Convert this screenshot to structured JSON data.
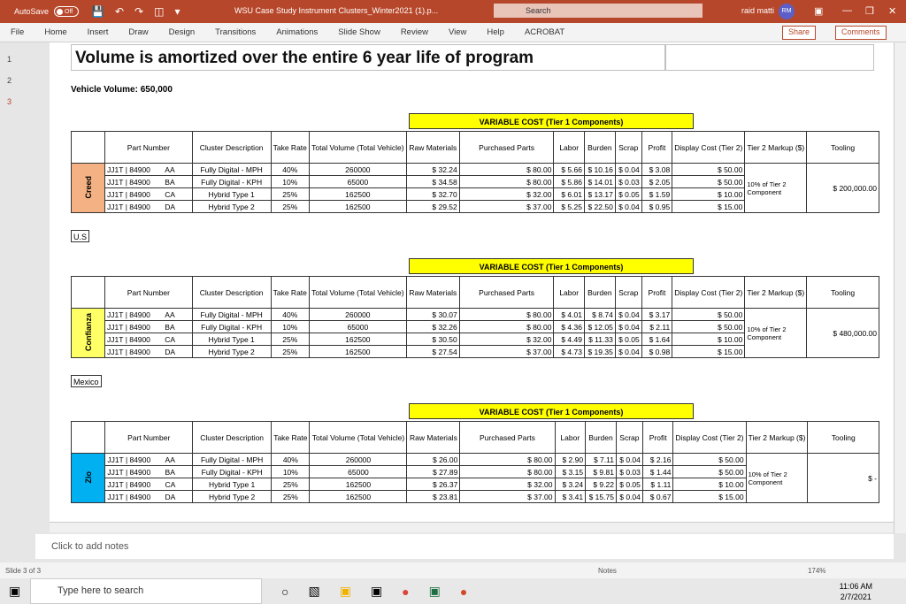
{
  "titlebar": {
    "autosave": "AutoSave",
    "autosave_state": "Off",
    "doc_title": "WSU Case Study Instrument Clusters_Winter2021 (1).p...",
    "search": "Search",
    "user": "raid matti",
    "initials": "RM"
  },
  "ribbon": {
    "tabs": [
      "File",
      "Home",
      "Insert",
      "Draw",
      "Design",
      "Transitions",
      "Animations",
      "Slide Show",
      "Review",
      "View",
      "Help",
      "ACROBAT"
    ],
    "share": "Share",
    "comments": "Comments"
  },
  "slide": {
    "title": "Volume is amortized over the entire 6 year life of program",
    "vehicle_volume": "Vehicle Volume:  650,000"
  },
  "table_headers": [
    "Part Number",
    "Cluster Description",
    "Take Rate",
    "Total Volume (Total Vehicle)",
    "Raw Materials",
    "Purchased Parts",
    "Labor",
    "Burden",
    "Scrap",
    "Profit",
    "Display Cost (Tier 2)",
    "Tier 2 Markup ($)",
    "Tooling"
  ],
  "vc_header": "VARIABLE COST (Tier 1 Components)",
  "markup_note": "10% of Tier 2 Component",
  "blocks": [
    {
      "supplier": "Creed",
      "color": "#f4b183",
      "region": "U.S",
      "tooling": "200,000.00",
      "rows": [
        {
          "part": [
            "JJ1T",
            "84900",
            "AA"
          ],
          "desc": "Fully Digital - MPH",
          "take": "40%",
          "vol": "260000",
          "raw": "32.24",
          "purch": "80.00",
          "labor": "5.66",
          "burden": "10.16",
          "scrap": "0.04",
          "profit": "3.08",
          "display": "50.00"
        },
        {
          "part": [
            "JJ1T",
            "84900",
            "BA"
          ],
          "desc": "Fully Digital - KPH",
          "take": "10%",
          "vol": "65000",
          "raw": "34.58",
          "purch": "80.00",
          "labor": "5.86",
          "burden": "14.01",
          "scrap": "0.03",
          "profit": "2.05",
          "display": "50.00"
        },
        {
          "part": [
            "JJ1T",
            "84900",
            "CA"
          ],
          "desc": "Hybrid Type 1",
          "take": "25%",
          "vol": "162500",
          "raw": "32.70",
          "purch": "32.00",
          "labor": "6.01",
          "burden": "13.17",
          "scrap": "0.05",
          "profit": "1.59",
          "display": "10.00"
        },
        {
          "part": [
            "JJ1T",
            "84900",
            "DA"
          ],
          "desc": "Hybrid Type 2",
          "take": "25%",
          "vol": "162500",
          "raw": "29.52",
          "purch": "37.00",
          "labor": "5.25",
          "burden": "22.50",
          "scrap": "0.04",
          "profit": "0.95",
          "display": "15.00"
        }
      ]
    },
    {
      "supplier": "Confianza",
      "color": "#ffff66",
      "region": "Mexico",
      "tooling": "480,000.00",
      "rows": [
        {
          "part": [
            "JJ1T",
            "84900",
            "AA"
          ],
          "desc": "Fully Digital - MPH",
          "take": "40%",
          "vol": "260000",
          "raw": "30.07",
          "purch": "80.00",
          "labor": "4.01",
          "burden": "8.74",
          "scrap": "0.04",
          "profit": "3.17",
          "display": "50.00"
        },
        {
          "part": [
            "JJ1T",
            "84900",
            "BA"
          ],
          "desc": "Fully Digital - KPH",
          "take": "10%",
          "vol": "65000",
          "raw": "32.26",
          "purch": "80.00",
          "labor": "4.36",
          "burden": "12.05",
          "scrap": "0.04",
          "profit": "2.11",
          "display": "50.00"
        },
        {
          "part": [
            "JJ1T",
            "84900",
            "CA"
          ],
          "desc": "Hybrid Type 1",
          "take": "25%",
          "vol": "162500",
          "raw": "30.50",
          "purch": "32.00",
          "labor": "4.49",
          "burden": "11.33",
          "scrap": "0.05",
          "profit": "1.64",
          "display": "10.00"
        },
        {
          "part": [
            "JJ1T",
            "84900",
            "DA"
          ],
          "desc": "Hybrid Type 2",
          "take": "25%",
          "vol": "162500",
          "raw": "27.54",
          "purch": "37.00",
          "labor": "4.73",
          "burden": "19.35",
          "scrap": "0.04",
          "profit": "0.98",
          "display": "15.00"
        }
      ]
    },
    {
      "supplier": "Zio",
      "color": "#00b0f0",
      "region": "",
      "tooling": "-",
      "rows": [
        {
          "part": [
            "JJ1T",
            "84900",
            "AA"
          ],
          "desc": "Fully Digital - MPH",
          "take": "40%",
          "vol": "260000",
          "raw": "26.00",
          "purch": "80.00",
          "labor": "2.90",
          "burden": "7.11",
          "scrap": "0.04",
          "profit": "2.16",
          "display": "50.00"
        },
        {
          "part": [
            "JJ1T",
            "84900",
            "BA"
          ],
          "desc": "Fully Digital - KPH",
          "take": "10%",
          "vol": "65000",
          "raw": "27.89",
          "purch": "80.00",
          "labor": "3.15",
          "burden": "9.81",
          "scrap": "0.03",
          "profit": "1.44",
          "display": "50.00"
        },
        {
          "part": [
            "JJ1T",
            "84900",
            "CA"
          ],
          "desc": "Hybrid Type 1",
          "take": "25%",
          "vol": "162500",
          "raw": "26.37",
          "purch": "32.00",
          "labor": "3.24",
          "burden": "9.22",
          "scrap": "0.05",
          "profit": "1.11",
          "display": "10.00"
        },
        {
          "part": [
            "JJ1T",
            "84900",
            "DA"
          ],
          "desc": "Hybrid Type 2",
          "take": "25%",
          "vol": "162500",
          "raw": "23.81",
          "purch": "37.00",
          "labor": "3.41",
          "burden": "15.75",
          "scrap": "0.04",
          "profit": "0.67",
          "display": "15.00"
        }
      ]
    }
  ],
  "notes": "Click to add notes",
  "status": {
    "slide": "Slide 3 of 3",
    "notes_btn": "Notes",
    "zoom": "174%"
  },
  "taskbar": {
    "search": "Type here to search",
    "time": "11:06 AM",
    "date": "2/7/2021"
  },
  "thumbs": [
    "1",
    "2",
    "3"
  ]
}
